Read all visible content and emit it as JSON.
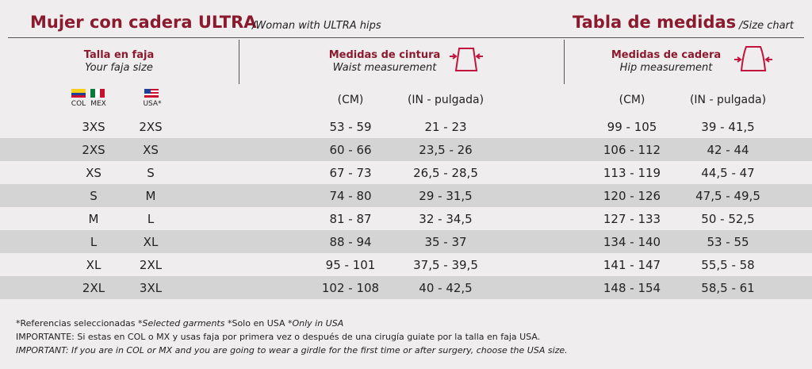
{
  "header": {
    "title": "Mujer con cadera ULTRA",
    "title_en": "/Woman with ULTRA hips",
    "chart_title": "Tabla de medidas",
    "chart_title_en": "/Size chart"
  },
  "columns": [
    {
      "title": "Talla en faja",
      "subtitle": "Your faja size"
    },
    {
      "title": "Medidas de cintura",
      "subtitle": "Waist measurement"
    },
    {
      "title": "Medidas de cadera",
      "subtitle": "Hip measurement"
    }
  ],
  "flags": [
    "COL",
    "MEX",
    "USA*"
  ],
  "units": [
    "(CM)",
    "(IN - pulgada)",
    "(CM)",
    "(IN - pulgada)"
  ],
  "table": {
    "rows": [
      [
        "3XS",
        "2XS",
        "53 - 59",
        "21 - 23",
        "99 - 105",
        "39 - 41,5"
      ],
      [
        "2XS",
        "XS",
        "60 - 66",
        "23,5 - 26",
        "106 - 112",
        "42 - 44"
      ],
      [
        "XS",
        "S",
        "67 - 73",
        "26,5 - 28,5",
        "113 - 119",
        "44,5 - 47"
      ],
      [
        "S",
        "M",
        "74 - 80",
        "29 - 31,5",
        "120 - 126",
        "47,5 - 49,5"
      ],
      [
        "M",
        "L",
        "81 - 87",
        "32 - 34,5",
        "127 - 133",
        "50 - 52,5"
      ],
      [
        "L",
        "XL",
        "88 - 94",
        "35 - 37",
        "134 - 140",
        "53 - 55"
      ],
      [
        "XL",
        "2XL",
        "95 - 101",
        "37,5 - 39,5",
        "141 - 147",
        "55,5 - 58"
      ],
      [
        "2XL",
        "3XL",
        "102 - 108",
        "40 - 42,5",
        "148 - 154",
        "58,5 - 61"
      ]
    ]
  },
  "notes": {
    "line1": [
      "*Referencias seleccionadas",
      "*Selected garments",
      "*Solo en USA",
      "*Only in USA"
    ],
    "line2": "IMPORTANTE: Si estas en COL o MX y usas faja por primera vez o después de una cirugía guiate por la talla en faja USA.",
    "line3": "IMPORTANT: If you are in COL or MX and you are going to wear a girdle for the first time or after surgery, choose the USA size."
  }
}
